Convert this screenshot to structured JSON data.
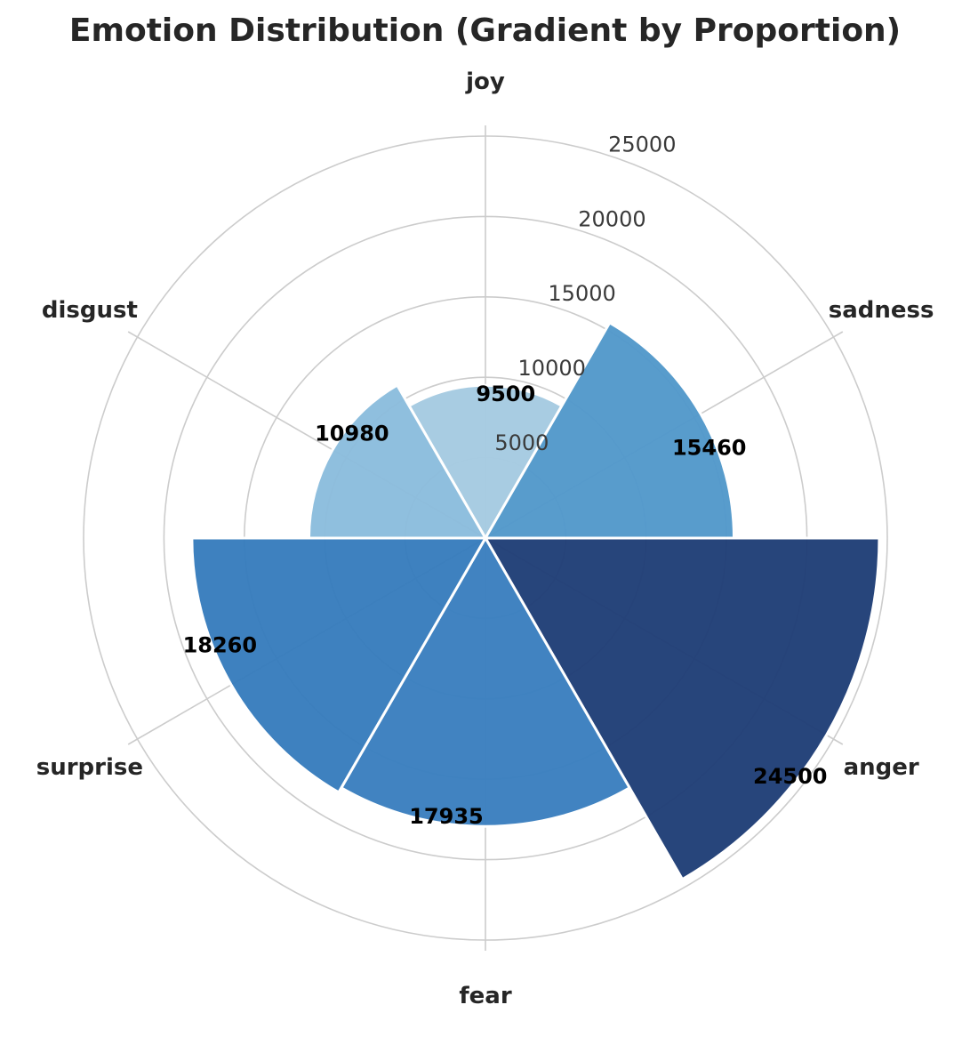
{
  "chart_data": {
    "type": "polar-bar",
    "title": "Emotion Distribution (Gradient by Proportion)",
    "categories": [
      "joy",
      "sadness",
      "anger",
      "fear",
      "surprise",
      "disgust"
    ],
    "values": [
      9500,
      15460,
      24500,
      17935,
      18260,
      10980
    ],
    "radial_ticks": [
      5000,
      10000,
      15000,
      20000,
      25000
    ],
    "rlim": [
      0,
      25000
    ],
    "colors": [
      "#a6cbe2",
      "#5399cb",
      "#213f77",
      "#3b80c0",
      "#387dbd",
      "#8cbddd"
    ],
    "grid": true
  }
}
